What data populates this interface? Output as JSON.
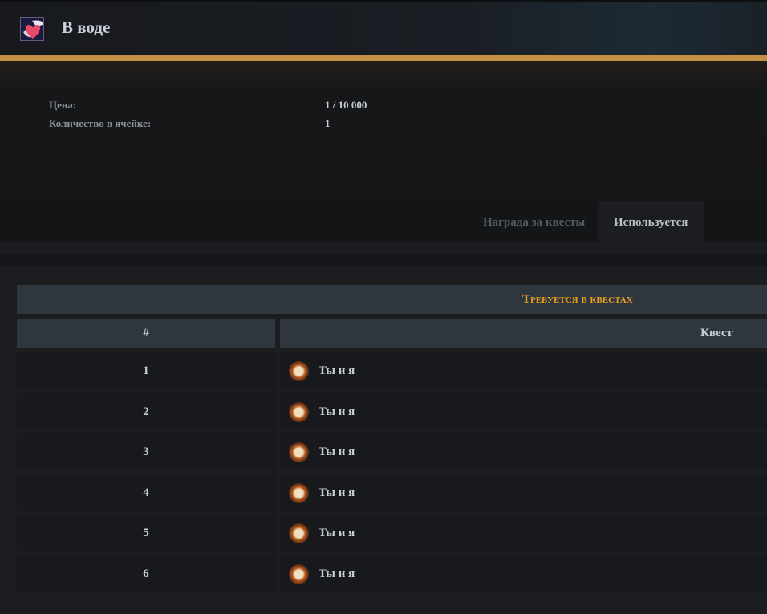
{
  "item": {
    "title": "В воде",
    "icon": "winged-heart-icon"
  },
  "info": [
    {
      "label": "Цена:",
      "value": "1 / 10 000"
    },
    {
      "label": "Количество в ячейке:",
      "value": "1"
    }
  ],
  "tabs": [
    {
      "label": "Награда за квесты",
      "active": false
    },
    {
      "label": "Используется",
      "active": true
    }
  ],
  "table": {
    "title": "Требуется в квестах",
    "columns": [
      "#",
      "Квест"
    ],
    "rows": [
      {
        "n": "1",
        "quest": "Ты и я"
      },
      {
        "n": "2",
        "quest": "Ты и я"
      },
      {
        "n": "3",
        "quest": "Ты и я"
      },
      {
        "n": "4",
        "quest": "Ты и я"
      },
      {
        "n": "5",
        "quest": "Ты и я"
      },
      {
        "n": "6",
        "quest": "Ты и я"
      }
    ],
    "quest_icon": "quest-scroll-icon"
  },
  "colors": {
    "accent": "#c38f42",
    "title": "#e8a020"
  }
}
